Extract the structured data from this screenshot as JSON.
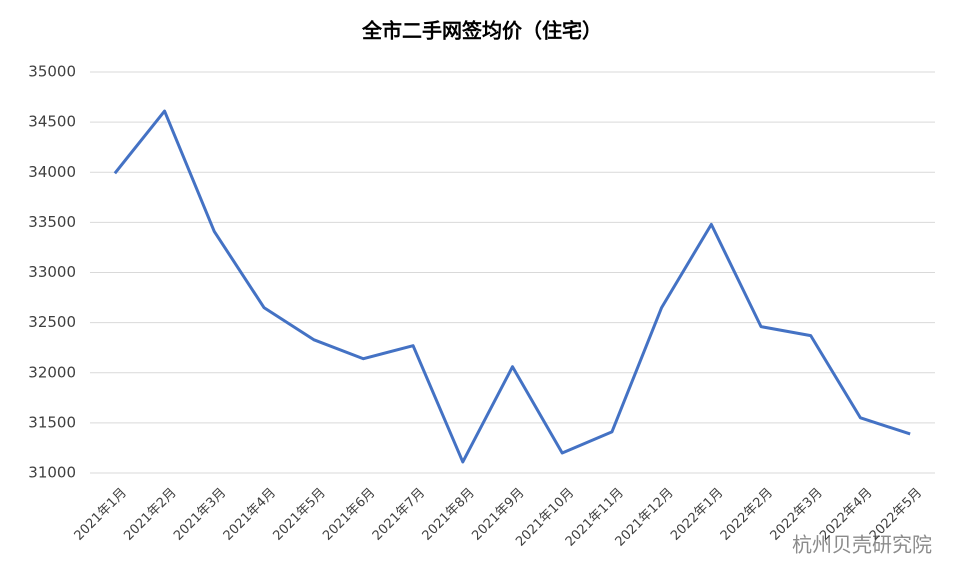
{
  "chart_data": {
    "type": "line",
    "title": "全市二手网签均价（住宅）",
    "categories": [
      "2021年1月",
      "2021年2月",
      "2021年3月",
      "2021年4月",
      "2021年5月",
      "2021年6月",
      "2021年7月",
      "2021年8月",
      "2021年9月",
      "2021年10月",
      "2021年11月",
      "2021年12月",
      "2022年1月",
      "2022年2月",
      "2022年3月",
      "2022年4月",
      "2022年5月"
    ],
    "series": [
      {
        "color": "#4472c4",
        "values": [
          33990,
          34610,
          33410,
          32650,
          32330,
          32140,
          32270,
          31110,
          32060,
          31200,
          31410,
          32650,
          33480,
          32460,
          32370,
          31550,
          31390
        ]
      }
    ],
    "ylim": [
      31000,
      35000
    ],
    "yticks": [
      31000,
      31500,
      32000,
      32500,
      33000,
      33500,
      34000,
      34500,
      35000
    ],
    "grid": true,
    "watermark": "杭州贝壳研究院"
  }
}
